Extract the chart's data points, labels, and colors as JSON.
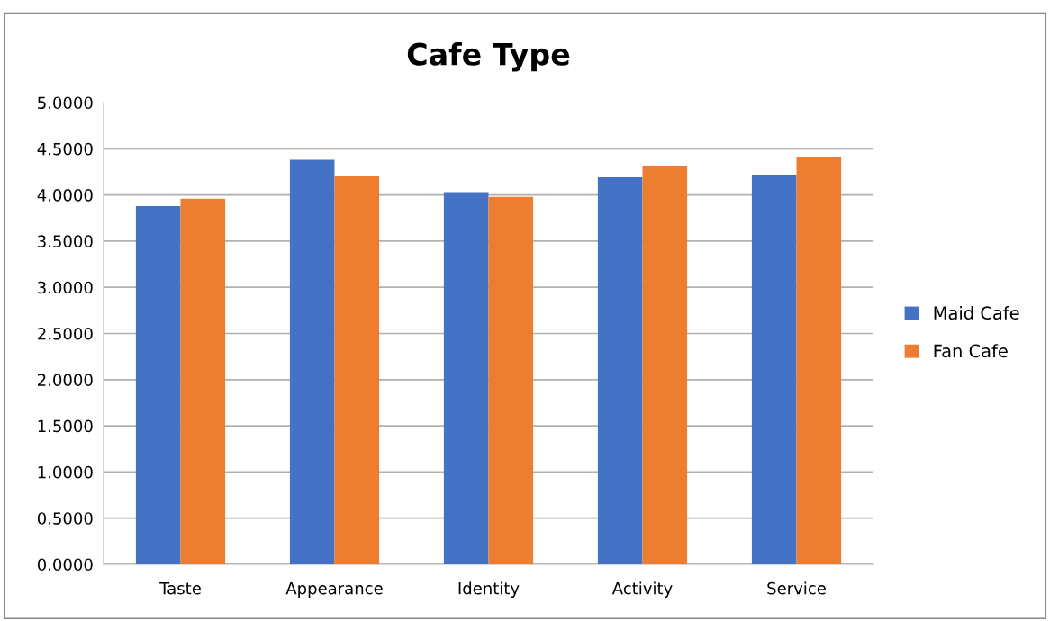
{
  "chart_data": {
    "type": "bar",
    "title": "Cafe Type",
    "categories": [
      "Taste",
      "Appearance",
      "Identity",
      "Activity",
      "Service"
    ],
    "series": [
      {
        "name": "Maid Cafe",
        "color": "#4472c4",
        "values": [
          3.88,
          4.38,
          4.03,
          4.19,
          4.22
        ]
      },
      {
        "name": "Fan Cafe",
        "color": "#ed7d31",
        "values": [
          3.96,
          4.2,
          3.98,
          4.31,
          4.41
        ]
      }
    ],
    "ylim": [
      0,
      5
    ],
    "yticks": [
      {
        "value": 0,
        "label": "0.0000"
      },
      {
        "value": 0.5,
        "label": "0.5000"
      },
      {
        "value": 1,
        "label": "1.0000"
      },
      {
        "value": 1.5,
        "label": "1.5000"
      },
      {
        "value": 2,
        "label": "2.0000"
      },
      {
        "value": 2.5,
        "label": "2.5000"
      },
      {
        "value": 3,
        "label": "3.0000"
      },
      {
        "value": 3.5,
        "label": "3.5000"
      },
      {
        "value": 4,
        "label": "4.0000"
      },
      {
        "value": 4.5,
        "label": "4.5000"
      },
      {
        "value": 5,
        "label": "5.0000"
      }
    ],
    "grid": "y",
    "legend": "right"
  }
}
